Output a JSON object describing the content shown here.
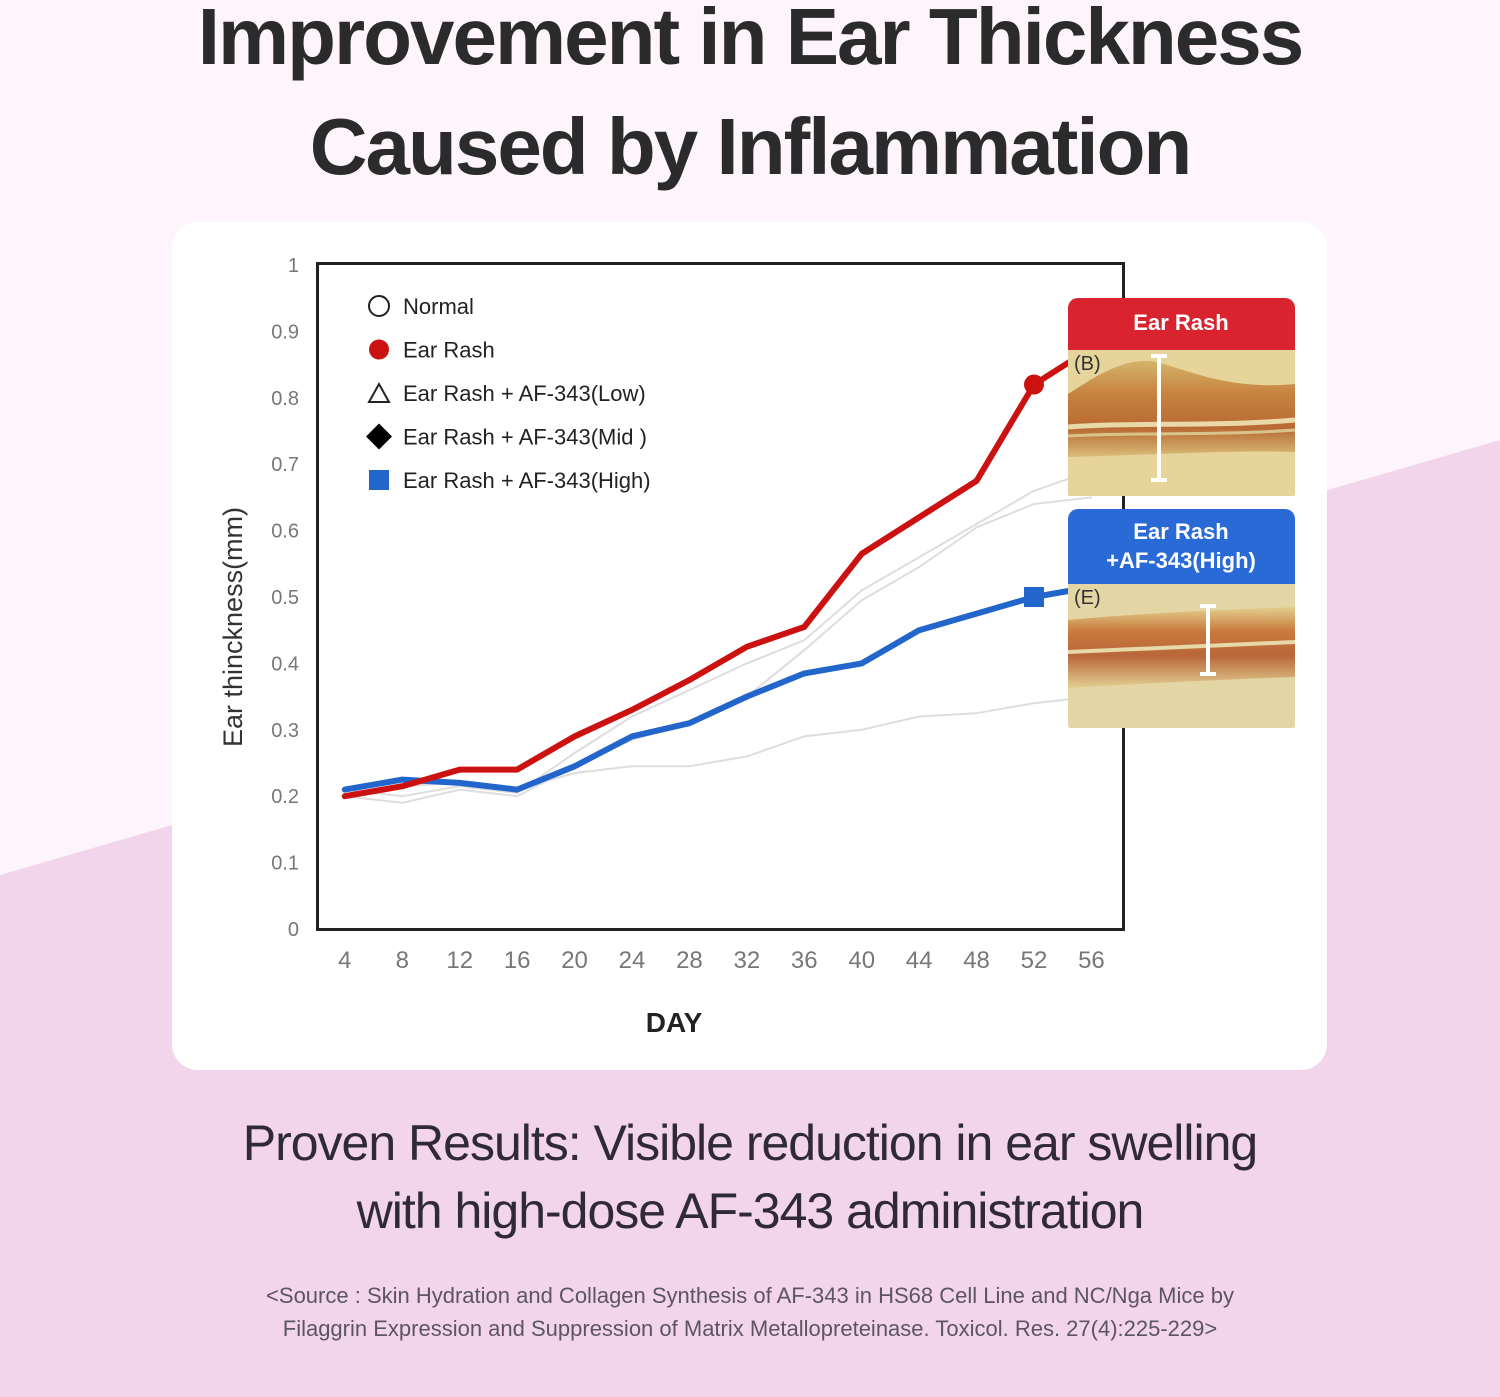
{
  "title": {
    "line1": "Improvement in Ear Thickness",
    "line2": "Caused by Inflammation"
  },
  "colors": {
    "bg_light": "#fdf5fb",
    "bg_pink": "#f3d5eb",
    "ear_rash": "#cc1111",
    "high": "#2266cc",
    "faint": "#dddddd",
    "panel_red": "#d9232e",
    "panel_blue": "#2a6ad6"
  },
  "chart_data": {
    "type": "line",
    "xlabel": "DAY",
    "ylabel": "Ear thinckness(mm)",
    "x": [
      4,
      8,
      12,
      16,
      20,
      24,
      28,
      32,
      36,
      40,
      44,
      48,
      52,
      56
    ],
    "x_ticks": [
      "4",
      "8",
      "12",
      "16",
      "20",
      "24",
      "28",
      "32",
      "36",
      "40",
      "44",
      "48",
      "52",
      "56"
    ],
    "y_ticks": [
      "0",
      "0.1",
      "0.2",
      "0.3",
      "0.4",
      "0.5",
      "0.6",
      "0.7",
      "0.8",
      "0.9",
      "1"
    ],
    "xlim": [
      2.2,
      58.2
    ],
    "ylim": [
      0,
      1
    ],
    "legend_position": "top-left",
    "series": [
      {
        "name": "Normal",
        "marker": "open-circle",
        "color": "#dddddd",
        "values": [
          0.2,
          0.215,
          0.22,
          0.21,
          0.235,
          0.245,
          0.245,
          0.26,
          0.29,
          0.3,
          0.32,
          0.325,
          0.34,
          0.35
        ]
      },
      {
        "name": "Ear Rash",
        "marker": "filled-circle",
        "color": "#cc1111",
        "values": [
          0.2,
          0.215,
          0.24,
          0.24,
          0.29,
          0.33,
          0.375,
          0.425,
          0.455,
          0.565,
          0.62,
          0.675,
          0.82,
          0.875
        ]
      },
      {
        "name": "Ear Rash + AF-343(Low)",
        "marker": "open-triangle",
        "color": "#dddddd",
        "values": [
          0.21,
          0.2,
          0.215,
          0.205,
          0.265,
          0.32,
          0.36,
          0.4,
          0.435,
          0.51,
          0.56,
          0.61,
          0.66,
          0.69
        ]
      },
      {
        "name": "Ear Rash + AF-343(Mid )",
        "marker": "filled-diamond",
        "color": "#dddddd",
        "values": [
          0.2,
          0.19,
          0.21,
          0.2,
          0.245,
          0.285,
          0.31,
          0.35,
          0.42,
          0.495,
          0.545,
          0.605,
          0.64,
          0.65
        ]
      },
      {
        "name": "Ear Rash + AF-343(High)",
        "marker": "filled-square",
        "color": "#2266cc",
        "values": [
          0.21,
          0.225,
          0.22,
          0.21,
          0.245,
          0.29,
          0.31,
          0.35,
          0.385,
          0.4,
          0.45,
          0.475,
          0.5,
          0.515
        ]
      }
    ]
  },
  "panels": {
    "ear_rash": {
      "header": "Ear Rash",
      "tag": "(B)"
    },
    "high": {
      "header_line1": "Ear Rash",
      "header_line2": "+AF-343(High)",
      "tag": "(E)"
    }
  },
  "result": {
    "line1": "Proven Results: Visible reduction in ear swelling",
    "line2": "with high-dose AF-343 administration"
  },
  "source": {
    "line1": "<Source : Skin Hydration and Collagen Synthesis of AF-343 in HS68 Cell Line and NC/Nga Mice by",
    "line2": "Filaggrin Expression and Suppression of Matrix Metallopreteinase. Toxicol. Res. 27(4):225-229>"
  }
}
